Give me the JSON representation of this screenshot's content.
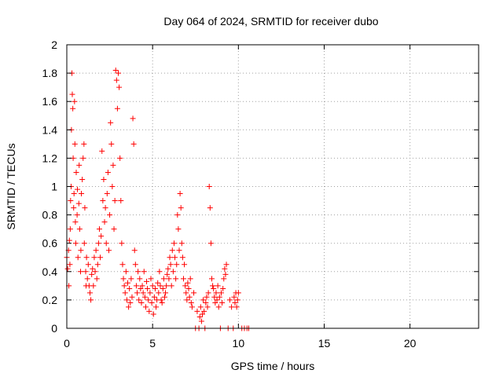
{
  "chart_data": {
    "type": "scatter",
    "title": "Day 064 of 2024, SRMTID for receiver dubo",
    "xlabel": "GPS time / hours",
    "ylabel": "SRMTID / TECUs",
    "xlim": [
      0,
      24
    ],
    "ylim": [
      0,
      2
    ],
    "xticks": [
      0,
      5,
      10,
      15,
      20
    ],
    "yticks": [
      0,
      0.2,
      0.4,
      0.6,
      0.8,
      1,
      1.2,
      1.4,
      1.6,
      1.8,
      2
    ],
    "grid": true,
    "legend": "none",
    "marker": "+",
    "color": "#ff0000",
    "series": [
      {
        "name": "SRMTID",
        "points": [
          [
            0.0,
            0.5
          ],
          [
            0.05,
            0.42
          ],
          [
            0.1,
            0.55
          ],
          [
            0.12,
            0.3
          ],
          [
            0.15,
            0.62
          ],
          [
            0.18,
            0.45
          ],
          [
            0.2,
            0.7
          ],
          [
            0.22,
            0.9
          ],
          [
            0.25,
            1.0
          ],
          [
            0.27,
            1.4
          ],
          [
            0.3,
            1.8
          ],
          [
            0.32,
            1.65
          ],
          [
            0.35,
            1.55
          ],
          [
            0.37,
            1.2
          ],
          [
            0.4,
            0.85
          ],
          [
            0.42,
            0.95
          ],
          [
            0.45,
            1.6
          ],
          [
            0.47,
            1.3
          ],
          [
            0.5,
            0.75
          ],
          [
            0.52,
            0.6
          ],
          [
            0.55,
            1.1
          ],
          [
            0.6,
            0.8
          ],
          [
            0.62,
            0.98
          ],
          [
            0.65,
            0.5
          ],
          [
            0.7,
            0.88
          ],
          [
            0.72,
            1.15
          ],
          [
            0.75,
            0.7
          ],
          [
            0.8,
            0.4
          ],
          [
            0.82,
            0.55
          ],
          [
            0.85,
            0.95
          ],
          [
            0.9,
            1.05
          ],
          [
            0.95,
            1.2
          ],
          [
            1.0,
            1.3
          ],
          [
            1.02,
            0.6
          ],
          [
            1.05,
            0.85
          ],
          [
            1.1,
            0.4
          ],
          [
            1.12,
            0.3
          ],
          [
            1.15,
            0.5
          ],
          [
            1.2,
            0.35
          ],
          [
            1.25,
            0.45
          ],
          [
            1.3,
            0.3
          ],
          [
            1.35,
            0.25
          ],
          [
            1.4,
            0.2
          ],
          [
            1.45,
            0.38
          ],
          [
            1.5,
            0.42
          ],
          [
            1.55,
            0.3
          ],
          [
            1.6,
            0.5
          ],
          [
            1.65,
            0.4
          ],
          [
            1.7,
            0.55
          ],
          [
            1.75,
            0.35
          ],
          [
            1.8,
            0.45
          ],
          [
            1.85,
            0.6
          ],
          [
            1.9,
            0.7
          ],
          [
            1.95,
            0.5
          ],
          [
            2.0,
            0.65
          ],
          [
            2.05,
            1.25
          ],
          [
            2.1,
            0.9
          ],
          [
            2.15,
            1.05
          ],
          [
            2.2,
            0.75
          ],
          [
            2.25,
            0.85
          ],
          [
            2.3,
            0.6
          ],
          [
            2.35,
            0.95
          ],
          [
            2.4,
            1.1
          ],
          [
            2.45,
            0.55
          ],
          [
            2.5,
            0.8
          ],
          [
            2.55,
            1.45
          ],
          [
            2.6,
            1.3
          ],
          [
            2.65,
            1.0
          ],
          [
            2.7,
            1.15
          ],
          [
            2.75,
            0.7
          ],
          [
            2.8,
            0.9
          ],
          [
            2.85,
            1.82
          ],
          [
            2.9,
            1.75
          ],
          [
            2.95,
            1.55
          ],
          [
            3.0,
            1.8
          ],
          [
            3.05,
            1.7
          ],
          [
            3.1,
            1.2
          ],
          [
            3.15,
            0.9
          ],
          [
            3.2,
            0.6
          ],
          [
            3.25,
            0.45
          ],
          [
            3.3,
            0.35
          ],
          [
            3.35,
            0.3
          ],
          [
            3.4,
            0.25
          ],
          [
            3.45,
            0.4
          ],
          [
            3.5,
            0.2
          ],
          [
            3.55,
            0.32
          ],
          [
            3.6,
            0.15
          ],
          [
            3.65,
            0.28
          ],
          [
            3.7,
            0.18
          ],
          [
            3.75,
            0.35
          ],
          [
            3.8,
            0.22
          ],
          [
            3.85,
            1.48
          ],
          [
            3.9,
            1.3
          ],
          [
            3.95,
            0.55
          ],
          [
            4.0,
            0.45
          ],
          [
            4.05,
            0.3
          ],
          [
            4.1,
            0.25
          ],
          [
            4.15,
            0.4
          ],
          [
            4.2,
            0.2
          ],
          [
            4.25,
            0.35
          ],
          [
            4.3,
            0.28
          ],
          [
            4.35,
            0.18
          ],
          [
            4.4,
            0.3
          ],
          [
            4.45,
            0.25
          ],
          [
            4.5,
            0.4
          ],
          [
            4.55,
            0.22
          ],
          [
            4.6,
            0.15
          ],
          [
            4.65,
            0.33
          ],
          [
            4.7,
            0.28
          ],
          [
            4.75,
            0.2
          ],
          [
            4.8,
            0.12
          ],
          [
            4.85,
            0.25
          ],
          [
            4.9,
            0.35
          ],
          [
            4.95,
            0.18
          ],
          [
            5.0,
            0.3
          ],
          [
            5.05,
            0.1
          ],
          [
            5.1,
            0.22
          ],
          [
            5.15,
            0.28
          ],
          [
            5.2,
            0.15
          ],
          [
            5.25,
            0.2
          ],
          [
            5.3,
            0.32
          ],
          [
            5.35,
            0.25
          ],
          [
            5.4,
            0.4
          ],
          [
            5.45,
            0.3
          ],
          [
            5.5,
            0.2
          ],
          [
            5.55,
            0.18
          ],
          [
            5.6,
            0.28
          ],
          [
            5.65,
            0.35
          ],
          [
            5.7,
            0.22
          ],
          [
            5.75,
            0.25
          ],
          [
            5.8,
            0.3
          ],
          [
            5.85,
            0.38
          ],
          [
            5.9,
            0.42
          ],
          [
            5.95,
            0.35
          ],
          [
            6.0,
            0.5
          ],
          [
            6.05,
            0.45
          ],
          [
            6.1,
            0.3
          ],
          [
            6.15,
            0.55
          ],
          [
            6.2,
            0.4
          ],
          [
            6.25,
            0.6
          ],
          [
            6.3,
            0.5
          ],
          [
            6.35,
            0.35
          ],
          [
            6.4,
            0.45
          ],
          [
            6.45,
            0.8
          ],
          [
            6.5,
            0.7
          ],
          [
            6.55,
            0.55
          ],
          [
            6.6,
            0.95
          ],
          [
            6.65,
            0.85
          ],
          [
            6.7,
            0.6
          ],
          [
            6.75,
            0.5
          ],
          [
            6.8,
            0.35
          ],
          [
            6.85,
            0.45
          ],
          [
            6.9,
            0.3
          ],
          [
            6.95,
            0.25
          ],
          [
            7.0,
            0.2
          ],
          [
            7.05,
            0.32
          ],
          [
            7.1,
            0.28
          ],
          [
            7.15,
            0.22
          ],
          [
            7.2,
            0.35
          ],
          [
            7.25,
            0.18
          ],
          [
            7.3,
            0.15
          ],
          [
            7.4,
            0.25
          ],
          [
            7.5,
            0.0
          ],
          [
            7.6,
            0.12
          ],
          [
            7.7,
            0.0
          ],
          [
            7.75,
            0.08
          ],
          [
            7.8,
            0.15
          ],
          [
            7.85,
            0.05
          ],
          [
            7.9,
            0.1
          ],
          [
            7.95,
            0.2
          ],
          [
            8.0,
            0.12
          ],
          [
            8.05,
            0.0
          ],
          [
            8.1,
            0.18
          ],
          [
            8.15,
            0.22
          ],
          [
            8.2,
            0.15
          ],
          [
            8.25,
            0.25
          ],
          [
            8.3,
            1.0
          ],
          [
            8.35,
            0.85
          ],
          [
            8.4,
            0.6
          ],
          [
            8.45,
            0.35
          ],
          [
            8.5,
            0.3
          ],
          [
            8.55,
            0.28
          ],
          [
            8.6,
            0.22
          ],
          [
            8.65,
            0.18
          ],
          [
            8.7,
            0.25
          ],
          [
            8.75,
            0.2
          ],
          [
            8.8,
            0.3
          ],
          [
            8.85,
            0.15
          ],
          [
            8.9,
            0.22
          ],
          [
            8.95,
            0.0
          ],
          [
            9.0,
            0.25
          ],
          [
            9.05,
            0.18
          ],
          [
            9.1,
            0.28
          ],
          [
            9.15,
            0.35
          ],
          [
            9.2,
            0.42
          ],
          [
            9.25,
            0.38
          ],
          [
            9.3,
            0.45
          ],
          [
            9.4,
            0.0
          ],
          [
            9.5,
            0.2
          ],
          [
            9.6,
            0.15
          ],
          [
            9.7,
            0.0
          ],
          [
            9.75,
            0.22
          ],
          [
            9.8,
            0.18
          ],
          [
            9.85,
            0.25
          ],
          [
            9.9,
            0.15
          ],
          [
            9.95,
            0.2
          ],
          [
            10.0,
            0.25
          ],
          [
            10.2,
            0.0
          ],
          [
            10.35,
            0.0
          ],
          [
            10.5,
            0.0
          ],
          [
            10.6,
            0.0
          ]
        ]
      }
    ]
  }
}
